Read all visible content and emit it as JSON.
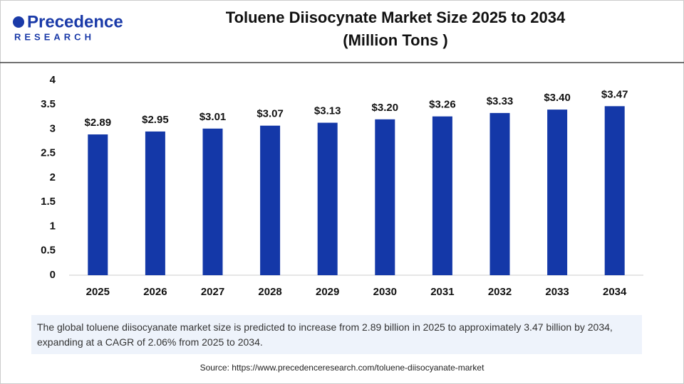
{
  "logo": {
    "name": "Precedence",
    "sub": "RESEARCH"
  },
  "chart_data": {
    "type": "bar",
    "title": "Toluene Diisocynate Market Size 2025 to 2034",
    "subtitle": "(Million Tons )",
    "categories": [
      "2025",
      "2026",
      "2027",
      "2028",
      "2029",
      "2030",
      "2031",
      "2032",
      "2033",
      "2034"
    ],
    "values": [
      2.89,
      2.95,
      3.01,
      3.07,
      3.13,
      3.2,
      3.26,
      3.33,
      3.4,
      3.47
    ],
    "value_labels": [
      "$2.89",
      "$2.95",
      "$3.01",
      "$3.07",
      "$3.13",
      "$3.20",
      "$3.26",
      "$3.33",
      "$3.40",
      "$3.47"
    ],
    "color": "#1438a8",
    "ylim": [
      0,
      4
    ],
    "yticks": [
      0,
      0.5,
      1,
      1.5,
      2,
      2.5,
      3,
      3.5,
      4
    ],
    "grid": false
  },
  "description": "The global toluene diisocyanate market size is predicted to increase from 2.89 billion in 2025 to approximately 3.47 billion by 2034, expanding at a CAGR of 2.06% from 2025 to 2034.",
  "source": "Source: https://www.precedenceresearch.com/toluene-diisocyanate-market"
}
